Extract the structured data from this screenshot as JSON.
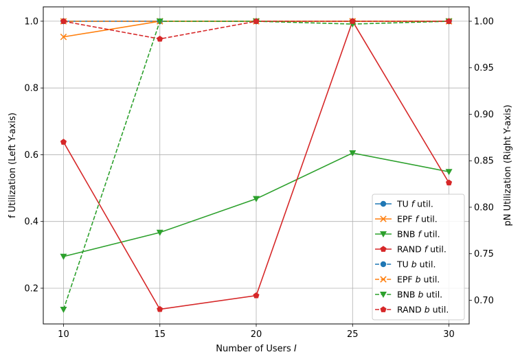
{
  "chart_data": {
    "type": "line",
    "xlabel_text": "Number of Users ",
    "xlabel_var": "I",
    "ylabel_left": "f Utilization (Left Y-axis)",
    "ylabel_right": "pN Utilization (Right Y-axis)",
    "x": [
      10,
      15,
      20,
      25,
      30
    ],
    "xticks": [
      "10",
      "15",
      "20",
      "25",
      "30"
    ],
    "xlim": [
      8.95,
      31.05
    ],
    "ylim_left": [
      0.093,
      1.043
    ],
    "ylim_right": [
      0.6745,
      1.0155
    ],
    "yticks_left": [
      "0.2",
      "0.4",
      "0.6",
      "0.8",
      "1.0"
    ],
    "yticks_right": [
      "0.70",
      "0.75",
      "0.80",
      "0.85",
      "0.90",
      "0.95",
      "1.00"
    ],
    "grid": true,
    "legend_position": "lower right",
    "series": [
      {
        "name": "TU f util.",
        "legend_prefix": "TU ",
        "legend_var": "f",
        "legend_suffix": " util.",
        "axis": "left",
        "color": "#1f77b4",
        "marker": "circle",
        "linestyle": "solid",
        "values": [
          1.0,
          1.0,
          1.0,
          1.0,
          1.0
        ]
      },
      {
        "name": "EPF f util.",
        "legend_prefix": "EPF ",
        "legend_var": "f",
        "legend_suffix": " util.",
        "axis": "left",
        "color": "#ff7f0e",
        "marker": "x",
        "linestyle": "solid",
        "values": [
          0.953,
          1.0,
          1.0,
          1.0,
          1.0
        ]
      },
      {
        "name": "BNB f util.",
        "legend_prefix": "BNB ",
        "legend_var": "f",
        "legend_suffix": " util.",
        "axis": "left",
        "color": "#2ca02c",
        "marker": "triangle-down",
        "linestyle": "solid",
        "values": [
          0.295,
          0.367,
          0.468,
          0.605,
          0.549
        ]
      },
      {
        "name": "RAND f util.",
        "legend_prefix": "RAND ",
        "legend_var": "f",
        "legend_suffix": " util.",
        "axis": "left",
        "color": "#d62728",
        "marker": "pentagon",
        "linestyle": "solid",
        "values": [
          0.638,
          0.137,
          0.178,
          1.0,
          0.516
        ]
      },
      {
        "name": "TU b util.",
        "legend_prefix": "TU ",
        "legend_var": "b",
        "legend_suffix": " util.",
        "axis": "right",
        "color": "#1f77b4",
        "marker": "circle",
        "linestyle": "dashed",
        "values": [
          1.0,
          1.0,
          1.0,
          1.0,
          1.0
        ]
      },
      {
        "name": "EPF b util.",
        "legend_prefix": "EPF ",
        "legend_var": "b",
        "legend_suffix": " util.",
        "axis": "right",
        "color": "#ff7f0e",
        "marker": "x",
        "linestyle": "dashed",
        "values": [
          1.0,
          1.0,
          1.0,
          1.0,
          1.0
        ]
      },
      {
        "name": "BNB b util.",
        "legend_prefix": "BNB ",
        "legend_var": "b",
        "legend_suffix": " util.",
        "axis": "right",
        "color": "#2ca02c",
        "marker": "triangle-down",
        "linestyle": "dashed",
        "values": [
          0.69,
          1.0,
          1.0,
          0.997,
          1.0
        ]
      },
      {
        "name": "RAND b util.",
        "legend_prefix": "RAND ",
        "legend_var": "b",
        "legend_suffix": " util.",
        "axis": "right",
        "color": "#d62728",
        "marker": "pentagon",
        "linestyle": "dashed",
        "values": [
          1.0,
          0.981,
          1.0,
          1.0,
          1.0
        ]
      }
    ]
  }
}
